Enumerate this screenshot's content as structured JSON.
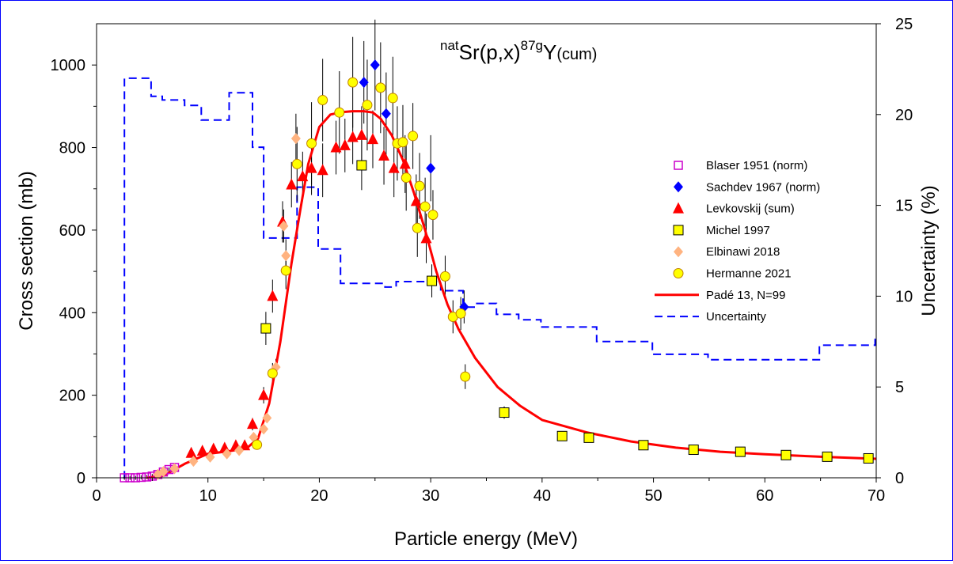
{
  "chart_data": {
    "type": "scatter",
    "title": {
      "pre": "nat",
      "main": "Sr(p,x)",
      "sup": "87g",
      "post": "Y",
      "sub": "(cum)"
    },
    "xlabel": "Particle energy (MeV)",
    "ylabel": "Cross section (mb)",
    "y2label": "Uncertainty (%)",
    "xlim": [
      0,
      70
    ],
    "ylim": [
      0,
      1100
    ],
    "y2lim": [
      0,
      25
    ],
    "xticks": [
      0,
      10,
      20,
      30,
      40,
      50,
      60,
      70
    ],
    "yticks": [
      0,
      200,
      400,
      600,
      800,
      1000
    ],
    "y2ticks": [
      0,
      5,
      10,
      15,
      20,
      25
    ],
    "legend_position": "right",
    "series": [
      {
        "name": "Blaser 1951 (norm)",
        "marker": "square-open",
        "color": "#cc00cc",
        "points": [
          [
            2.5,
            0,
            5
          ],
          [
            3.0,
            0,
            5
          ],
          [
            3.5,
            0,
            5
          ],
          [
            4.0,
            1,
            5
          ],
          [
            4.5,
            2,
            5
          ],
          [
            5.0,
            4,
            5
          ],
          [
            5.5,
            8,
            5
          ],
          [
            6.0,
            14,
            5
          ],
          [
            6.5,
            20,
            5
          ],
          [
            7.0,
            25,
            5
          ]
        ]
      },
      {
        "name": "Sachdev 1967 (norm)",
        "marker": "diamond",
        "color": "#0000ff",
        "points": [
          [
            24.0,
            958,
            100
          ],
          [
            25.0,
            1000,
            110
          ],
          [
            26.0,
            882,
            100
          ],
          [
            30.0,
            750,
            80
          ],
          [
            33.0,
            414,
            40
          ]
        ]
      },
      {
        "name": "Levkovskij (sum)",
        "marker": "triangle",
        "color": "#ff0000",
        "points": [
          [
            8.5,
            60,
            8
          ],
          [
            9.5,
            65,
            8
          ],
          [
            10.5,
            70,
            8
          ],
          [
            11.5,
            72,
            8
          ],
          [
            12.5,
            78,
            8
          ],
          [
            13.3,
            78,
            8
          ],
          [
            14.0,
            130,
            15
          ],
          [
            15.0,
            200,
            20
          ],
          [
            15.8,
            440,
            40
          ],
          [
            16.7,
            620,
            50
          ],
          [
            17.5,
            710,
            55
          ],
          [
            18.5,
            730,
            60
          ],
          [
            19.3,
            750,
            65
          ],
          [
            20.3,
            745,
            65
          ],
          [
            21.5,
            800,
            65
          ],
          [
            22.3,
            805,
            65
          ],
          [
            23.0,
            825,
            65
          ],
          [
            23.8,
            830,
            70
          ],
          [
            24.8,
            820,
            70
          ],
          [
            25.8,
            780,
            70
          ],
          [
            26.7,
            750,
            70
          ],
          [
            27.7,
            760,
            70
          ],
          [
            28.7,
            670,
            65
          ],
          [
            29.6,
            580,
            60
          ]
        ]
      },
      {
        "name": "Michel 1997",
        "marker": "square",
        "color": "#ffff00",
        "points": [
          [
            15.2,
            362,
            40
          ],
          [
            23.8,
            757,
            60
          ],
          [
            30.1,
            477,
            40
          ],
          [
            36.6,
            158,
            15
          ],
          [
            41.8,
            101,
            8
          ],
          [
            44.2,
            97,
            8
          ],
          [
            49.1,
            79,
            6
          ],
          [
            53.6,
            68,
            6
          ],
          [
            57.8,
            63,
            5
          ],
          [
            61.9,
            55,
            5
          ],
          [
            65.6,
            51,
            5
          ],
          [
            69.3,
            47,
            5
          ]
        ]
      },
      {
        "name": "Elbinawi 2018",
        "marker": "diamond",
        "color": "#ffb380",
        "points": [
          [
            5.5,
            8,
            3
          ],
          [
            6.0,
            15,
            3
          ],
          [
            7.0,
            22,
            3
          ],
          [
            8.7,
            40,
            5
          ],
          [
            10.2,
            50,
            5
          ],
          [
            11.7,
            58,
            5
          ],
          [
            12.8,
            66,
            5
          ],
          [
            14.1,
            98,
            8
          ],
          [
            15.0,
            118,
            10
          ],
          [
            15.3,
            145,
            12
          ],
          [
            16.1,
            268,
            20
          ],
          [
            16.8,
            610,
            40
          ],
          [
            17.0,
            538,
            40
          ],
          [
            17.9,
            822,
            60
          ]
        ]
      },
      {
        "name": "Hermanne 2021",
        "marker": "circle",
        "color": "#ffff00",
        "points": [
          [
            14.4,
            80,
            10
          ],
          [
            15.8,
            253,
            25
          ],
          [
            17.0,
            502,
            45
          ],
          [
            18.0,
            760,
            90
          ],
          [
            19.3,
            810,
            100
          ],
          [
            20.3,
            915,
            100
          ],
          [
            21.8,
            885,
            100
          ],
          [
            23.0,
            958,
            110
          ],
          [
            24.3,
            903,
            110
          ],
          [
            25.5,
            945,
            110
          ],
          [
            26.6,
            920,
            100
          ],
          [
            27.0,
            810,
            90
          ],
          [
            27.5,
            813,
            90
          ],
          [
            27.8,
            727,
            80
          ],
          [
            28.4,
            828,
            80
          ],
          [
            28.8,
            605,
            70
          ],
          [
            29.0,
            707,
            80
          ],
          [
            29.5,
            657,
            70
          ],
          [
            30.2,
            637,
            60
          ],
          [
            31.3,
            488,
            50
          ],
          [
            32.0,
            390,
            40
          ],
          [
            32.7,
            398,
            40
          ],
          [
            33.1,
            245,
            30
          ]
        ]
      }
    ],
    "fit": {
      "name": "Padé 13,  N=99",
      "color": "#ff0000",
      "points": [
        [
          4.5,
          0
        ],
        [
          6,
          5
        ],
        [
          8,
          35
        ],
        [
          10,
          58
        ],
        [
          12,
          65
        ],
        [
          13.5,
          72
        ],
        [
          14.5,
          95
        ],
        [
          15.5,
          180
        ],
        [
          16.5,
          330
        ],
        [
          17.5,
          520
        ],
        [
          18.3,
          650
        ],
        [
          19,
          760
        ],
        [
          20,
          850
        ],
        [
          21,
          880
        ],
        [
          22,
          886
        ],
        [
          23,
          888
        ],
        [
          24,
          888
        ],
        [
          24.8,
          885
        ],
        [
          25.5,
          870
        ],
        [
          26.5,
          830
        ],
        [
          27.5,
          770
        ],
        [
          28.5,
          690
        ],
        [
          29.5,
          600
        ],
        [
          30.5,
          500
        ],
        [
          31.5,
          420
        ],
        [
          32.5,
          360
        ],
        [
          34,
          290
        ],
        [
          36,
          220
        ],
        [
          38,
          175
        ],
        [
          40,
          140
        ],
        [
          44,
          110
        ],
        [
          48,
          88
        ],
        [
          52,
          73
        ],
        [
          56,
          63
        ],
        [
          60,
          57
        ],
        [
          65,
          51
        ],
        [
          70,
          46
        ]
      ]
    },
    "uncertainty": {
      "name": "Uncertainty",
      "color": "#0000ff",
      "steps": [
        [
          2.4,
          2.5,
          0
        ],
        [
          2.5,
          4.9,
          22
        ],
        [
          4.9,
          5.9,
          21
        ],
        [
          5.9,
          7.9,
          20.8
        ],
        [
          7.9,
          9.4,
          20.5
        ],
        [
          9.4,
          11.9,
          19.7
        ],
        [
          11.9,
          14.0,
          21.2
        ],
        [
          14.0,
          15.0,
          18.2
        ],
        [
          15.0,
          18.0,
          13.2
        ],
        [
          18.0,
          19.9,
          16.0
        ],
        [
          19.9,
          21.9,
          12.6
        ],
        [
          21.9,
          25.9,
          10.7
        ],
        [
          25.9,
          26.9,
          10.5
        ],
        [
          26.9,
          28.9,
          10.8
        ],
        [
          28.9,
          30.9,
          10.8
        ],
        [
          30.9,
          32.9,
          10.3
        ],
        [
          32.9,
          33.9,
          9.4
        ],
        [
          33.9,
          35.9,
          9.6
        ],
        [
          35.9,
          37.9,
          9.0
        ],
        [
          37.9,
          39.9,
          8.7
        ],
        [
          39.9,
          44.9,
          8.3
        ],
        [
          44.9,
          49.9,
          7.5
        ],
        [
          49.9,
          54.9,
          6.8
        ],
        [
          54.9,
          64.9,
          6.5
        ],
        [
          64.9,
          69.9,
          7.3
        ],
        [
          69.9,
          70,
          7.7
        ]
      ]
    }
  }
}
